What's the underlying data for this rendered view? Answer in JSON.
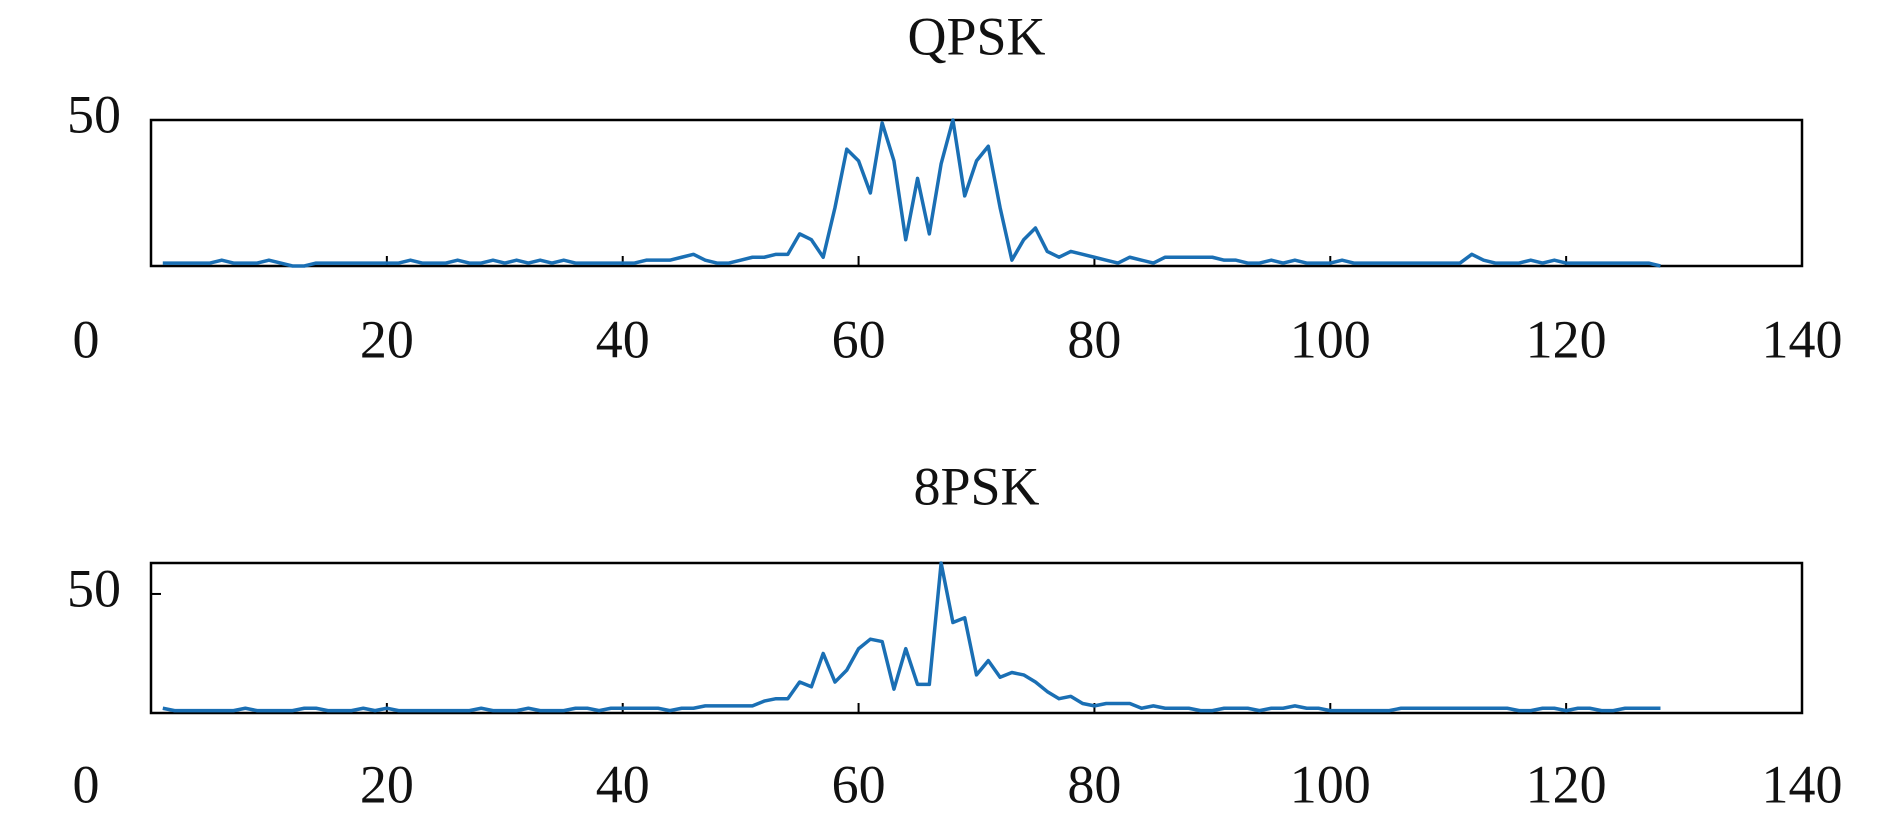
{
  "chart_data": [
    {
      "type": "line",
      "title": "QPSK",
      "x": [
        1,
        2,
        3,
        4,
        5,
        6,
        7,
        8,
        9,
        10,
        11,
        12,
        13,
        14,
        15,
        16,
        17,
        18,
        19,
        20,
        21,
        22,
        23,
        24,
        25,
        26,
        27,
        28,
        29,
        30,
        31,
        32,
        33,
        34,
        35,
        36,
        37,
        38,
        39,
        40,
        41,
        42,
        43,
        44,
        45,
        46,
        47,
        48,
        49,
        50,
        51,
        52,
        53,
        54,
        55,
        56,
        57,
        58,
        59,
        60,
        61,
        62,
        63,
        64,
        65,
        66,
        67,
        68,
        69,
        70,
        71,
        72,
        73,
        74,
        75,
        76,
        77,
        78,
        79,
        80,
        81,
        82,
        83,
        84,
        85,
        86,
        87,
        88,
        89,
        90,
        91,
        92,
        93,
        94,
        95,
        96,
        97,
        98,
        99,
        100,
        101,
        102,
        103,
        104,
        105,
        106,
        107,
        108,
        109,
        110,
        111,
        112,
        113,
        114,
        115,
        116,
        117,
        118,
        119,
        120,
        121,
        122,
        123,
        124,
        125,
        126,
        127,
        128
      ],
      "series": [
        {
          "color": "#1a6fb4",
          "values": [
            1,
            1,
            1,
            1,
            1,
            2,
            1,
            1,
            1,
            2,
            1,
            0,
            0,
            1,
            1,
            1,
            1,
            1,
            1,
            1,
            1,
            2,
            1,
            1,
            1,
            2,
            1,
            1,
            2,
            1,
            2,
            1,
            2,
            1,
            2,
            1,
            1,
            1,
            1,
            1,
            1,
            2,
            2,
            2,
            3,
            4,
            2,
            1,
            1,
            2,
            3,
            3,
            4,
            4,
            11,
            9,
            3,
            20,
            40,
            36,
            25,
            49,
            36,
            9,
            30,
            11,
            35,
            50,
            24,
            36,
            41,
            20,
            2,
            9,
            13,
            5,
            3,
            5,
            4,
            3,
            2,
            1,
            3,
            2,
            1,
            3,
            3,
            3,
            3,
            3,
            2,
            2,
            1,
            1,
            2,
            1,
            2,
            1,
            1,
            1,
            2,
            1,
            1,
            1,
            1,
            1,
            1,
            1,
            1,
            1,
            1,
            4,
            2,
            1,
            1,
            1,
            2,
            1,
            2,
            1,
            1,
            1,
            1,
            1,
            1,
            1,
            1,
            0
          ]
        }
      ],
      "xlim": [
        0,
        140
      ],
      "xticks": [
        0,
        20,
        40,
        60,
        80,
        100,
        120,
        140
      ],
      "ylim": [
        0,
        50
      ],
      "yticks": [
        50
      ]
    },
    {
      "type": "line",
      "title": "8PSK",
      "x": [
        1,
        2,
        3,
        4,
        5,
        6,
        7,
        8,
        9,
        10,
        11,
        12,
        13,
        14,
        15,
        16,
        17,
        18,
        19,
        20,
        21,
        22,
        23,
        24,
        25,
        26,
        27,
        28,
        29,
        30,
        31,
        32,
        33,
        34,
        35,
        36,
        37,
        38,
        39,
        40,
        41,
        42,
        43,
        44,
        45,
        46,
        47,
        48,
        49,
        50,
        51,
        52,
        53,
        54,
        55,
        56,
        57,
        58,
        59,
        60,
        61,
        62,
        63,
        64,
        65,
        66,
        67,
        68,
        69,
        70,
        71,
        72,
        73,
        74,
        75,
        76,
        77,
        78,
        79,
        80,
        81,
        82,
        83,
        84,
        85,
        86,
        87,
        88,
        89,
        90,
        91,
        92,
        93,
        94,
        95,
        96,
        97,
        98,
        99,
        100,
        101,
        102,
        103,
        104,
        105,
        106,
        107,
        108,
        109,
        110,
        111,
        112,
        113,
        114,
        115,
        116,
        117,
        118,
        119,
        120,
        121,
        122,
        123,
        124,
        125,
        126,
        127,
        128
      ],
      "series": [
        {
          "color": "#1a6fb4",
          "values": [
            2,
            1,
            1,
            1,
            1,
            1,
            1,
            2,
            1,
            1,
            1,
            1,
            2,
            2,
            1,
            1,
            1,
            2,
            1,
            2,
            1,
            1,
            1,
            1,
            1,
            1,
            1,
            2,
            1,
            1,
            1,
            2,
            1,
            1,
            1,
            2,
            2,
            1,
            2,
            2,
            2,
            2,
            2,
            1,
            2,
            2,
            3,
            3,
            3,
            3,
            3,
            5,
            6,
            6,
            13,
            11,
            25,
            13,
            18,
            27,
            31,
            30,
            10,
            27,
            12,
            12,
            63,
            38,
            40,
            16,
            22,
            15,
            17,
            16,
            13,
            9,
            6,
            7,
            4,
            3,
            4,
            4,
            4,
            2,
            3,
            2,
            2,
            2,
            1,
            1,
            2,
            2,
            2,
            1,
            2,
            2,
            3,
            2,
            2,
            1,
            1,
            1,
            1,
            1,
            1,
            2,
            2,
            2,
            2,
            2,
            2,
            2,
            2,
            2,
            2,
            1,
            1,
            2,
            2,
            1,
            2,
            2,
            1,
            1,
            2,
            2,
            2,
            2
          ]
        }
      ],
      "xlim": [
        0,
        140
      ],
      "xticks": [
        0,
        20,
        40,
        60,
        80,
        100,
        120,
        140
      ],
      "ylim": [
        0,
        63
      ],
      "yticks": [
        50
      ]
    }
  ]
}
